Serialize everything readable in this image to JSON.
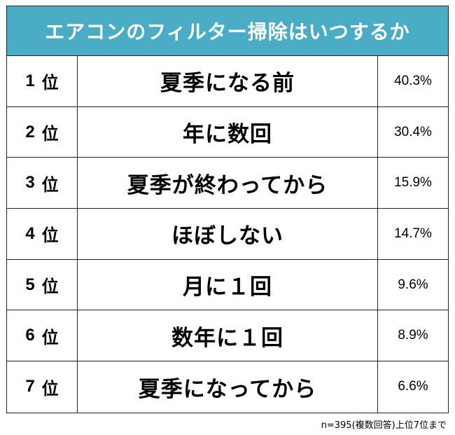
{
  "chart_data": {
    "type": "table",
    "title": "エアコンのフィルター掃除はいつするか",
    "rank_suffix": "位",
    "rows": [
      {
        "rank": "1",
        "answer": "夏季になる前",
        "percent": "40.3%"
      },
      {
        "rank": "2",
        "answer": "年に数回",
        "percent": "30.4%"
      },
      {
        "rank": "3",
        "answer": "夏季が終わってから",
        "percent": "15.9%"
      },
      {
        "rank": "4",
        "answer": "ほぼしない",
        "percent": "14.7%"
      },
      {
        "rank": "5",
        "answer": "月に１回",
        "percent": "9.6%"
      },
      {
        "rank": "6",
        "answer": "数年に１回",
        "percent": "8.9%"
      },
      {
        "rank": "7",
        "answer": "夏季になってから",
        "percent": "6.6%"
      }
    ],
    "note": "n=395(複数回答)上位7位まで"
  },
  "colors": {
    "header_background": "#4bacc6",
    "header_text": "#ffffff",
    "border": "#222222"
  }
}
